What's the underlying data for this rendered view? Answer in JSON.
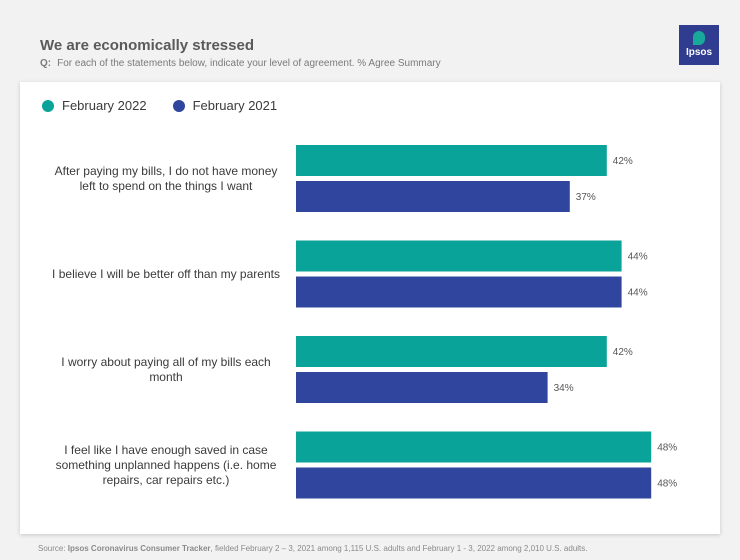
{
  "header": {
    "title": "We are economically stressed",
    "question_label": "Q:",
    "question_text": "For each of the statements below, indicate your level of agreement. % Agree Summary",
    "logo_text": "Ipsos"
  },
  "colors": {
    "february_2022": "#0aa39a",
    "february_2021": "#30459e",
    "logo_bg": "#2f3c90"
  },
  "chart_data": {
    "type": "bar",
    "orientation": "horizontal",
    "categories": [
      "After paying my bills, I do not have money left to spend on the things I want",
      "I believe I will be better off than my parents",
      "I worry about paying all of my bills each month",
      "I feel like I have enough saved in case something unplanned happens (i.e. home repairs, car repairs etc.)"
    ],
    "series": [
      {
        "name": "February 2022",
        "values": [
          42,
          44,
          42,
          48
        ]
      },
      {
        "name": "February 2021",
        "values": [
          37,
          44,
          34,
          48
        ]
      }
    ],
    "value_suffix": "%",
    "xlim": [
      0,
      100
    ],
    "legend_position": "top-left",
    "grid": false
  },
  "footer": {
    "source_prefix": "Source: ",
    "source_name": "Ipsos Coronavirus Consumer Tracker",
    "source_rest": ", fielded February 2 – 3, 2021 among 1,115 U.S. adults and February 1 - 3, 2022 among 2,010 U.S. adults."
  }
}
